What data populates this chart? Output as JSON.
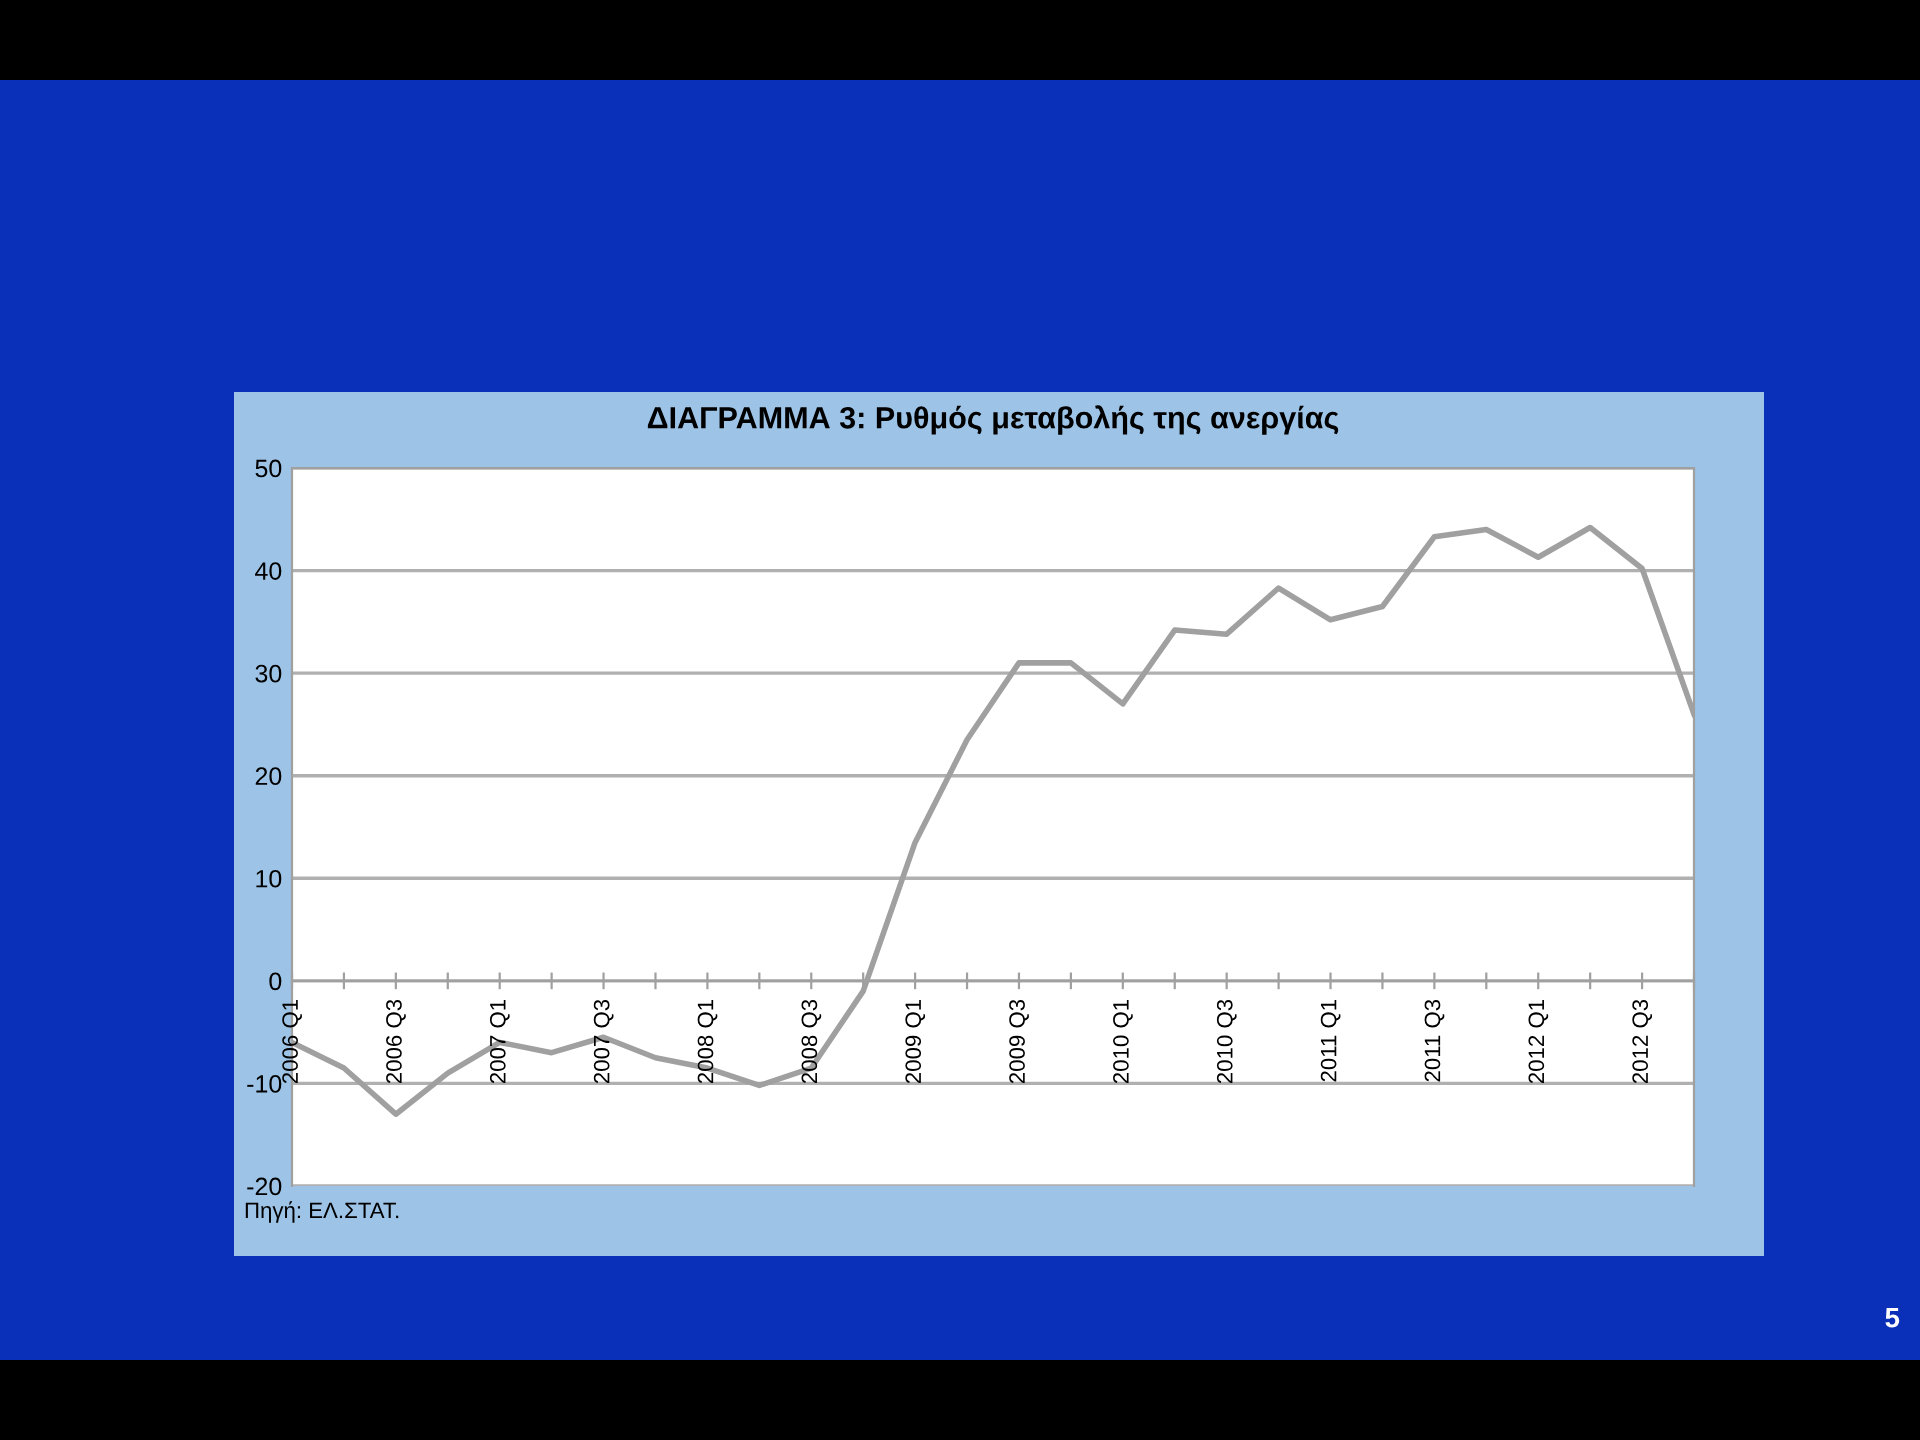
{
  "chart_data": {
    "type": "line",
    "title": "ΔΙΑΓΡΑΜΜΑ 3: Ρυθμός μεταβολής της ανεργίας",
    "categories": [
      "2006 Q1",
      null,
      "2006 Q3",
      null,
      "2007 Q1",
      null,
      "2007 Q3",
      null,
      "2008 Q1",
      null,
      "2008 Q3",
      null,
      "2009 Q1",
      null,
      "2009 Q3",
      null,
      "2010 Q1",
      null,
      "2010 Q3",
      null,
      "2011 Q1",
      null,
      "2011 Q3",
      null,
      "2012 Q1",
      null,
      "2012 Q3",
      null
    ],
    "series": [
      {
        "color": "#a0a0a0",
        "values": [
          -6,
          -8.5,
          -13,
          -9,
          -6,
          -7,
          -5.5,
          -7.5,
          -8.5,
          -10.2,
          -8.5,
          -1,
          13.5,
          23.5,
          31,
          31,
          27,
          34.2,
          33.8,
          38.3,
          35.2,
          36.5,
          43.3,
          44,
          41.3,
          44.2,
          40.2,
          26
        ]
      }
    ],
    "ylim": [
      -20,
      50
    ],
    "yticks": [
      -20,
      -10,
      0,
      10,
      20,
      30,
      40,
      50
    ],
    "grid": "y",
    "marker": "none",
    "line_style": "solid",
    "annotations": [
      "Πηγή: ΕΛ.ΣΤΑΤ.",
      "5"
    ]
  }
}
